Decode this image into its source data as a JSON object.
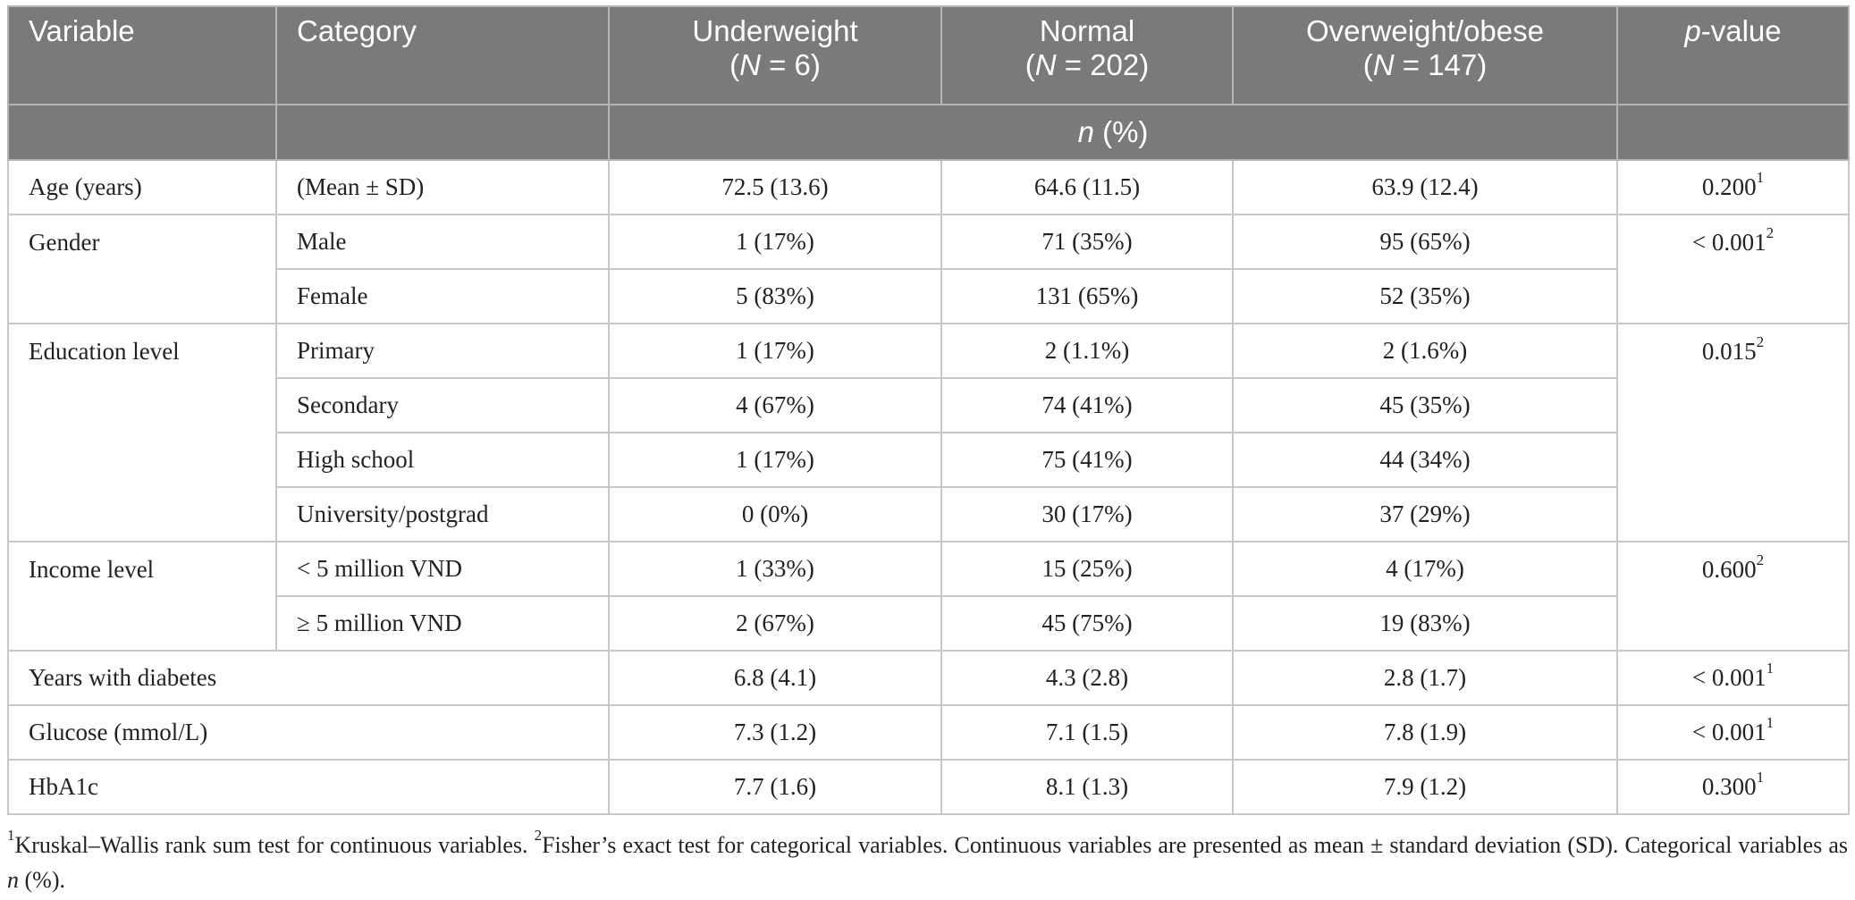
{
  "header": {
    "variable": "Variable",
    "category": "Category",
    "underweight": "Underweight",
    "underweight_n": "6",
    "normal": "Normal",
    "normal_n": "202",
    "overweight": "Overweight/obese",
    "overweight_n": "147",
    "n_label": "N",
    "eq": " = ",
    "p_p": "p",
    "p_rest": "-value",
    "subhdr_n": "n",
    "subhdr_pct": " (%)"
  },
  "rows": {
    "age": {
      "var": "Age (years)",
      "cat": "(Mean ± SD)",
      "u": "72.5 (13.6)",
      "n": "64.6 (11.5)",
      "o": "63.9 (12.4)",
      "p": "0.200",
      "sup": "1"
    },
    "gender_male": {
      "var": "Gender",
      "cat": "Male",
      "u": "1 (17%)",
      "n": "71 (35%)",
      "o": "95 (65%)",
      "p": "< 0.001",
      "sup": "2"
    },
    "gender_female": {
      "cat": "Female",
      "u": "5 (83%)",
      "n": "131 (65%)",
      "o": "52 (35%)"
    },
    "edu_primary": {
      "var": "Education level",
      "cat": "Primary",
      "u": "1 (17%)",
      "n": "2 (1.1%)",
      "o": "2 (1.6%)",
      "p": "0.015",
      "sup": "2"
    },
    "edu_secondary": {
      "cat": "Secondary",
      "u": "4 (67%)",
      "n": "74 (41%)",
      "o": "45 (35%)"
    },
    "edu_high": {
      "cat": "High school",
      "u": "1 (17%)",
      "n": "75 (41%)",
      "o": "44 (34%)"
    },
    "edu_uni": {
      "cat": "University/postgrad",
      "u": "0 (0%)",
      "n": "30 (17%)",
      "o": "37 (29%)"
    },
    "inc_low": {
      "var": "Income level",
      "cat": "< 5 million VND",
      "u": "1 (33%)",
      "n": "15 (25%)",
      "o": "4 (17%)",
      "p": "0.600",
      "sup": "2"
    },
    "inc_high": {
      "cat": "≥ 5 million VND",
      "u": "2 (67%)",
      "n": "45 (75%)",
      "o": "19 (83%)"
    },
    "years": {
      "var": "Years with diabetes",
      "u": "6.8 (4.1)",
      "n": "4.3 (2.8)",
      "o": "2.8 (1.7)",
      "p": "< 0.001",
      "sup": "1"
    },
    "glucose": {
      "var": "Glucose (mmol/L)",
      "u": "7.3 (1.2)",
      "n": "7.1 (1.5)",
      "o": "7.8 (1.9)",
      "p": "< 0.001",
      "sup": "1"
    },
    "hba1c": {
      "var": "HbA1c",
      "u": "7.7 (1.6)",
      "n": "8.1 (1.3)",
      "o": "7.9 (1.2)",
      "p": "0.300",
      "sup": "1"
    }
  },
  "footnote": {
    "sup1": "1",
    "text1": "Kruskal–Wallis rank sum test for continuous variables. ",
    "sup2": "2",
    "text2": "Fisher’s exact test for categorical variables. Continuous variables are presented as mean ± standard deviation (SD). Categorical variables as ",
    "n": "n",
    "text3": " (%)."
  }
}
